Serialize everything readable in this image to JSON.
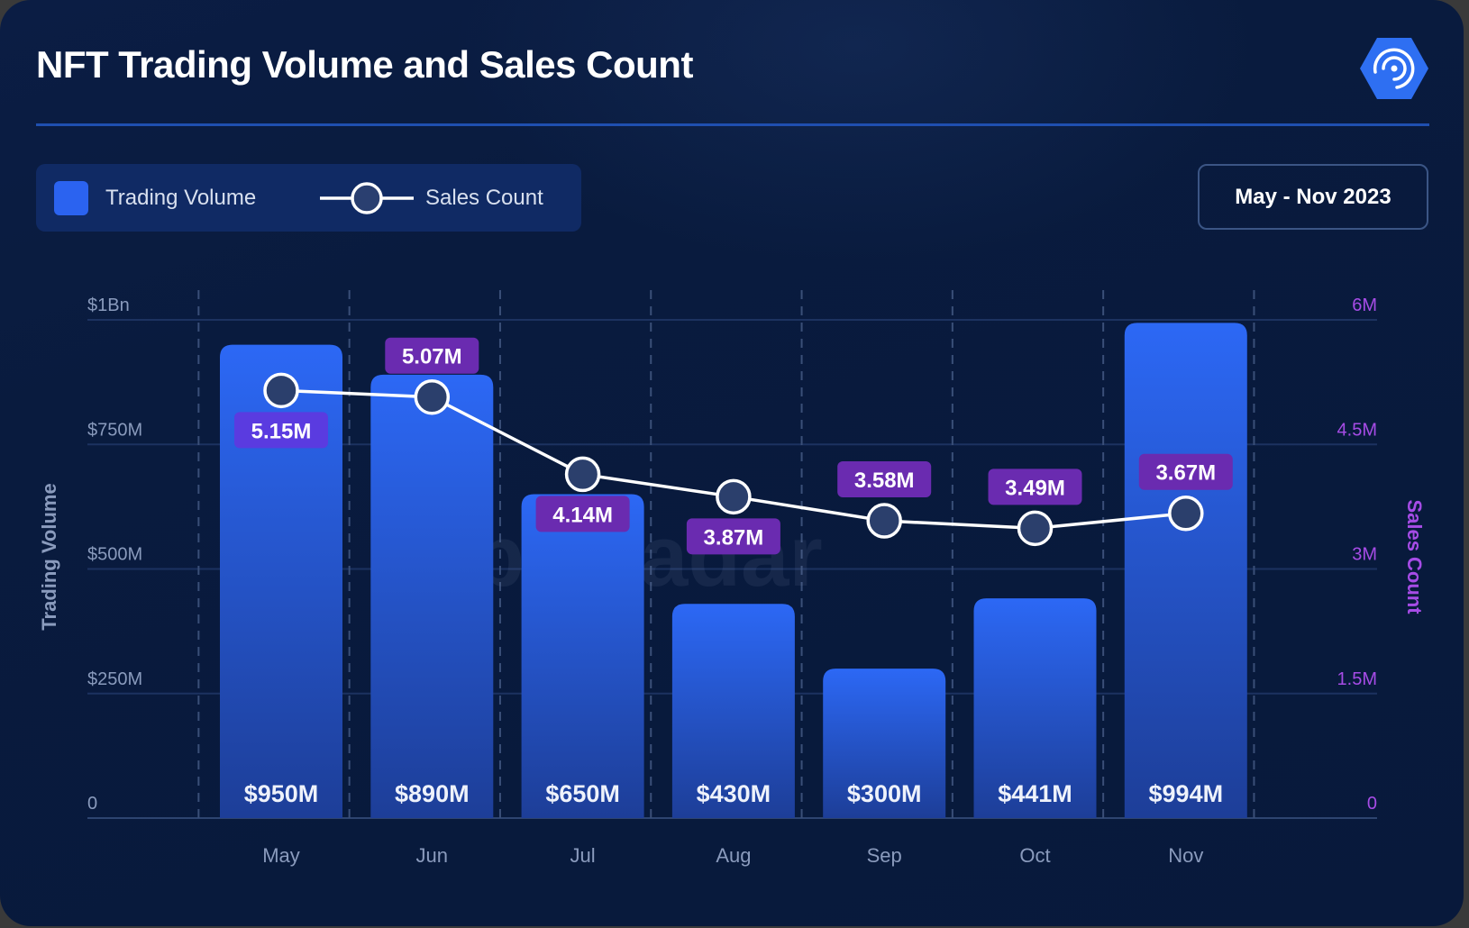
{
  "header": {
    "title": "NFT Trading Volume and Sales Count",
    "logo_icon": "appradar-logo-icon"
  },
  "legend": {
    "items": [
      {
        "label": "Trading Volume",
        "icon": "bar-swatch-icon"
      },
      {
        "label": "Sales Count",
        "icon": "line-marker-icon"
      }
    ]
  },
  "date_range": {
    "label": "May - Nov 2023"
  },
  "watermark": "appRadar",
  "colors": {
    "bar": "#2b63f0",
    "bar_bottom": "#1e3f9a",
    "line": "#ffffff",
    "label_bg_primary": "#5a3be0",
    "label_bg_secondary": "#6a2bb0",
    "right_axis": "#a64ce6"
  },
  "chart_data": {
    "type": "bar",
    "title": "NFT Trading Volume and Sales Count",
    "categories": [
      "May",
      "Jun",
      "Jul",
      "Aug",
      "Sep",
      "Oct",
      "Nov"
    ],
    "series": [
      {
        "name": "Trading Volume",
        "type": "bar",
        "axis": "left",
        "values": [
          950,
          890,
          650,
          430,
          300,
          441,
          994
        ],
        "unit": "USD millions",
        "labels": [
          "$950M",
          "$890M",
          "$650M",
          "$430M",
          "$300M",
          "$441M",
          "$994M"
        ]
      },
      {
        "name": "Sales Count",
        "type": "line",
        "axis": "right",
        "values": [
          5.15,
          5.07,
          4.14,
          3.87,
          3.58,
          3.49,
          3.67
        ],
        "unit": "millions",
        "labels": [
          "5.15M",
          "5.07M",
          "4.14M",
          "3.87M",
          "3.58M",
          "3.49M",
          "3.67M"
        ],
        "label_position": [
          "below",
          "above",
          "below",
          "below",
          "above",
          "above",
          "above"
        ]
      }
    ],
    "ylabel": "Trading Volume",
    "ylabel_right": "Sales Count",
    "ylim": [
      0,
      1000
    ],
    "ylim_right": [
      0,
      6
    ],
    "yticks": [
      "0",
      "$250M",
      "$500M",
      "$750M",
      "$1Bn"
    ],
    "yticks_right": [
      "0",
      "1.5M",
      "3M",
      "4.5M",
      "6M"
    ],
    "grid": true,
    "legend_position": "top-left"
  }
}
